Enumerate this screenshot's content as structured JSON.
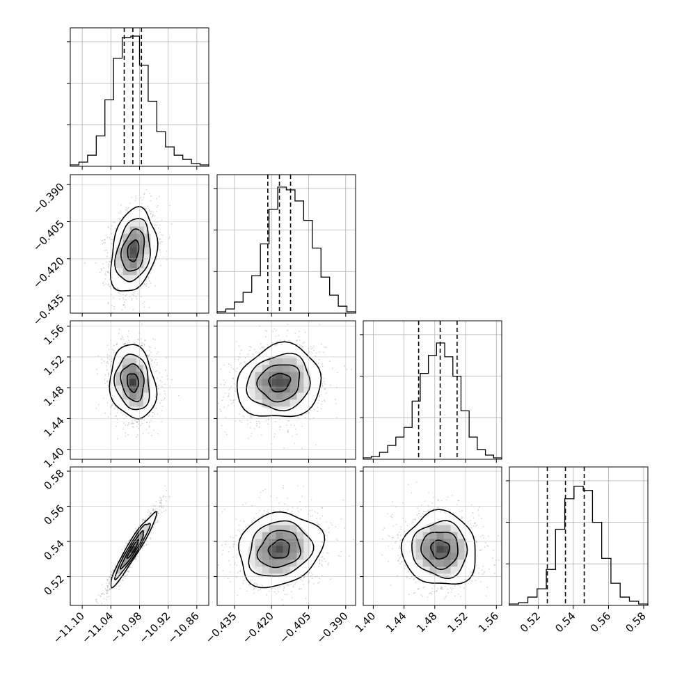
{
  "chart_data": {
    "type": "corner",
    "title": "",
    "parameters": [
      {
        "index": 0,
        "range": [
          -11.125,
          -10.835
        ],
        "ticks": [
          -11.1,
          -11.04,
          -10.98,
          -10.92,
          -10.86
        ],
        "tick_labels": [
          "−11.10",
          "−11.04",
          "−10.98",
          "−10.92",
          "−10.86"
        ],
        "quantiles": [
          -11.012,
          -10.994,
          -10.976
        ],
        "hist_counts": [
          1,
          3,
          8,
          22,
          48,
          78,
          93,
          94,
          73,
          47,
          25,
          14,
          8,
          5,
          2,
          1
        ],
        "hist_ylim": [
          0,
          100
        ],
        "hist_yticks": [
          30,
          60,
          90
        ]
      },
      {
        "index": 1,
        "range": [
          -0.442,
          -0.386
        ],
        "ticks": [
          -0.39,
          -0.405,
          -0.42,
          -0.435
        ],
        "tick_labels": [
          "−0.390",
          "−0.405",
          "−0.420",
          "−0.435"
        ],
        "quantiles": [
          -0.4215,
          -0.4168,
          -0.4123
        ],
        "hist_counts": [
          1,
          3,
          8,
          15,
          27,
          50,
          75,
          91,
          89,
          81,
          67,
          47,
          26,
          13,
          5,
          1
        ],
        "hist_ylim": [
          0,
          100
        ],
        "hist_yticks": [
          30,
          60,
          90
        ]
      },
      {
        "index": 2,
        "range": [
          1.387,
          1.567
        ],
        "ticks": [
          1.4,
          1.44,
          1.48,
          1.52,
          1.56
        ],
        "tick_labels": [
          "1.40",
          "1.44",
          "1.48",
          "1.52",
          "1.56"
        ],
        "quantiles": [
          1.459,
          1.487,
          1.509
        ],
        "hist_counts": [
          1,
          2,
          5,
          10,
          16,
          23,
          42,
          62,
          75,
          84,
          74,
          60,
          35,
          16,
          7,
          3,
          1
        ],
        "hist_ylim": [
          0,
          100
        ],
        "hist_yticks": [
          30,
          60,
          90
        ]
      },
      {
        "index": 3,
        "range": [
          0.5036,
          0.5824
        ],
        "ticks": [
          0.52,
          0.54,
          0.56,
          0.58
        ],
        "tick_labels": [
          "0.52",
          "0.54",
          "0.56",
          "0.58"
        ],
        "quantiles": [
          0.5252,
          0.5355,
          0.5462
        ],
        "hist_counts": [
          1,
          2,
          6,
          12,
          26,
          55,
          77,
          86,
          83,
          60,
          34,
          16,
          6,
          3,
          1
        ],
        "hist_ylim": [
          0,
          100
        ],
        "hist_yticks": [
          30,
          60,
          90
        ]
      }
    ],
    "pairs": [
      {
        "x": 0,
        "y": 1,
        "center": [
          -10.993,
          -0.4168
        ],
        "sigma": [
          0.024,
          0.0085
        ],
        "rho": 0.25
      },
      {
        "x": 0,
        "y": 2,
        "center": [
          -10.994,
          1.487
        ],
        "sigma": [
          0.024,
          0.024
        ],
        "rho": -0.15
      },
      {
        "x": 1,
        "y": 2,
        "center": [
          -0.4168,
          1.487
        ],
        "sigma": [
          0.0085,
          0.024
        ],
        "rho": 0.1
      },
      {
        "x": 0,
        "y": 3,
        "center": [
          -10.994,
          0.5355
        ],
        "sigma": [
          0.024,
          0.0105
        ],
        "rho": 0.95
      },
      {
        "x": 1,
        "y": 3,
        "center": [
          -0.4168,
          0.5355
        ],
        "sigma": [
          0.0085,
          0.0105
        ],
        "rho": 0.15
      },
      {
        "x": 2,
        "y": 3,
        "center": [
          1.487,
          0.5355
        ],
        "sigma": [
          0.024,
          0.0105
        ],
        "rho": -0.05
      }
    ],
    "contour_levels_sigma": [
      0.5,
      1.0,
      1.5,
      2.0
    ],
    "colors": {
      "hist": "#000000",
      "points": "#7f7f7f",
      "grid": "#b0b0b0",
      "density": "#000000"
    },
    "grid": true,
    "legend": "none"
  }
}
